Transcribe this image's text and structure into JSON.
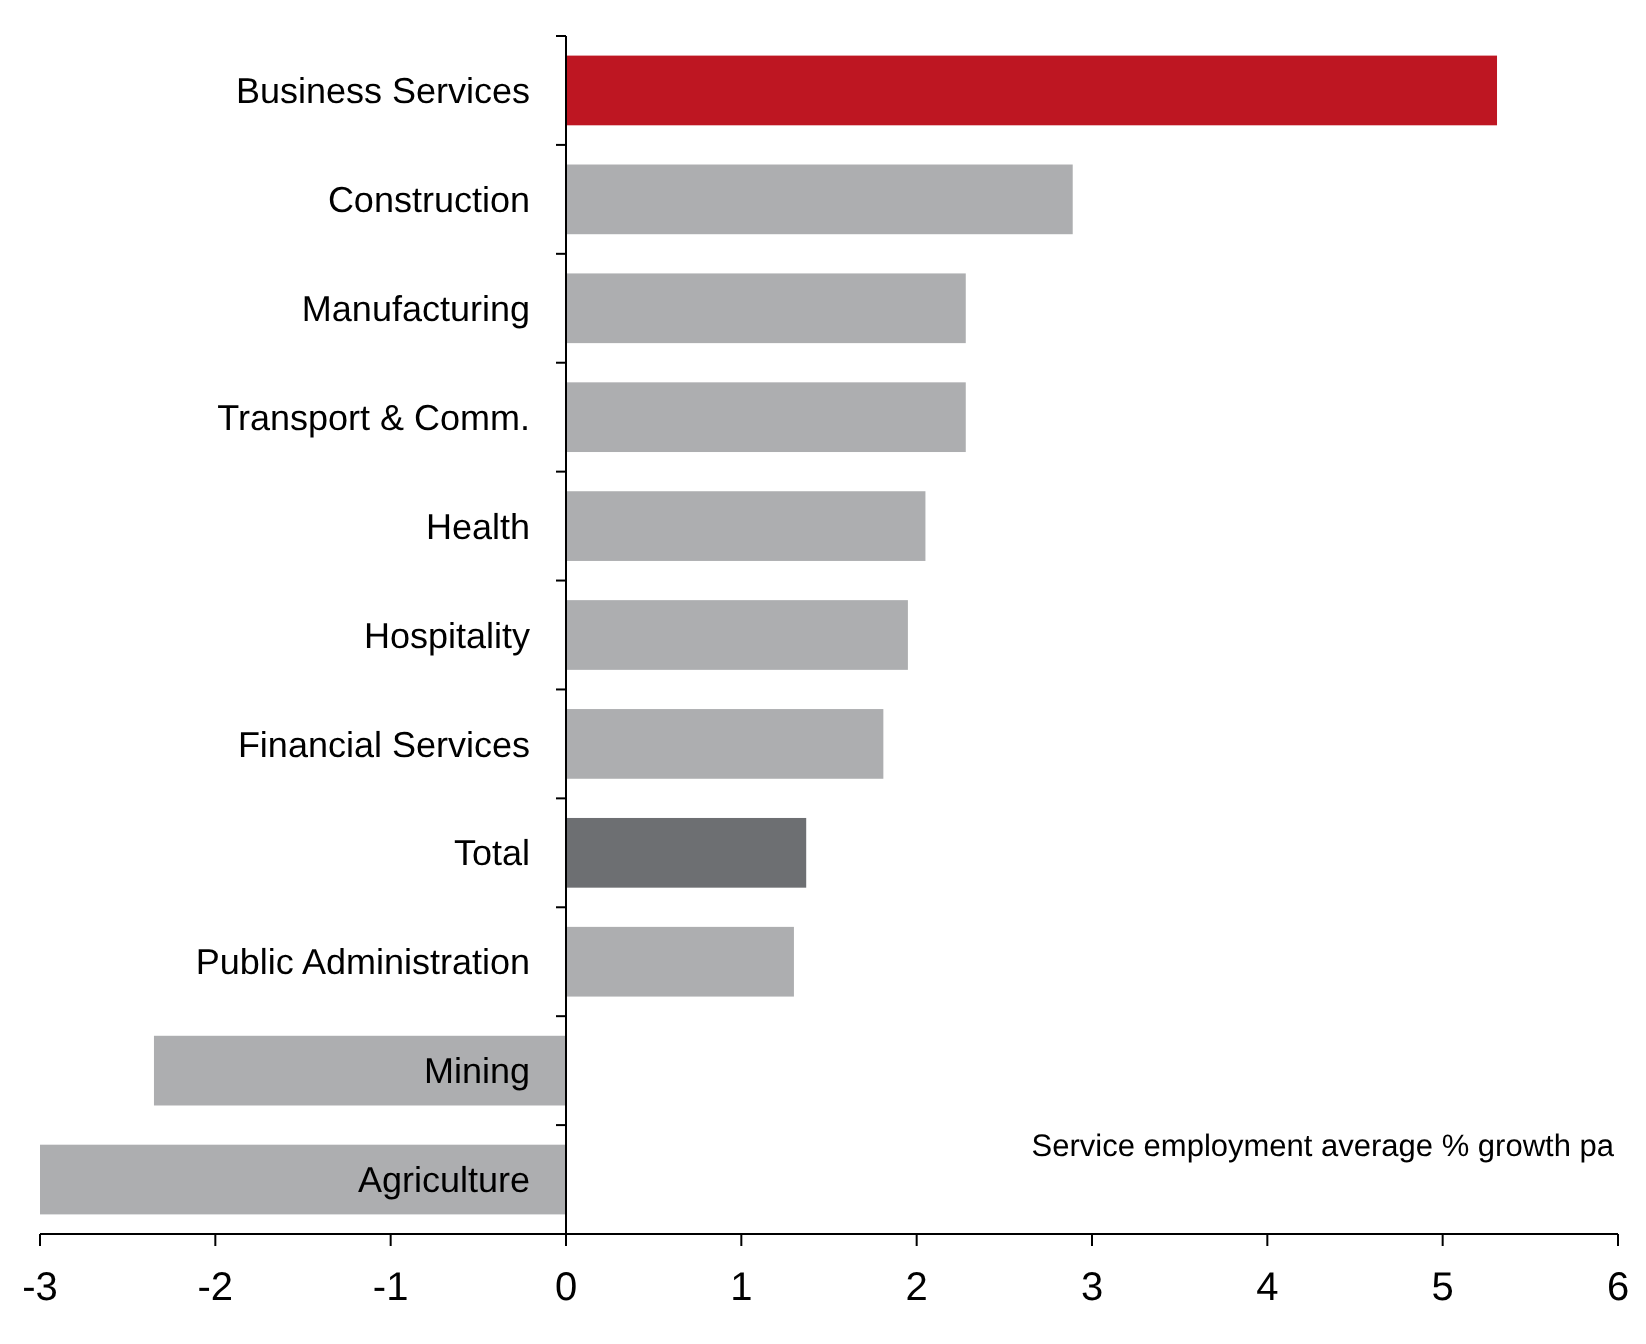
{
  "chart_data": {
    "type": "bar",
    "orientation": "horizontal",
    "categories": [
      "Business Services",
      "Construction",
      "Manufacturing",
      "Transport & Comm.",
      "Health",
      "Hospitality",
      "Financial Services",
      "Total",
      "Public Administration",
      "Mining",
      "Agriculture"
    ],
    "values": [
      5.31,
      2.89,
      2.28,
      2.28,
      2.05,
      1.95,
      1.81,
      1.37,
      1.3,
      -2.35,
      -3.0
    ],
    "colors": [
      "#be1622",
      "#adaeb0",
      "#adaeb0",
      "#adaeb0",
      "#adaeb0",
      "#adaeb0",
      "#adaeb0",
      "#6d6f72",
      "#adaeb0",
      "#adaeb0",
      "#adaeb0"
    ],
    "xlim": [
      -3,
      6
    ],
    "xticks": [
      -3,
      -2,
      -1,
      0,
      1,
      2,
      3,
      4,
      5,
      6
    ],
    "grid": false,
    "annotations": [
      "Service employment average % growth pa"
    ]
  }
}
